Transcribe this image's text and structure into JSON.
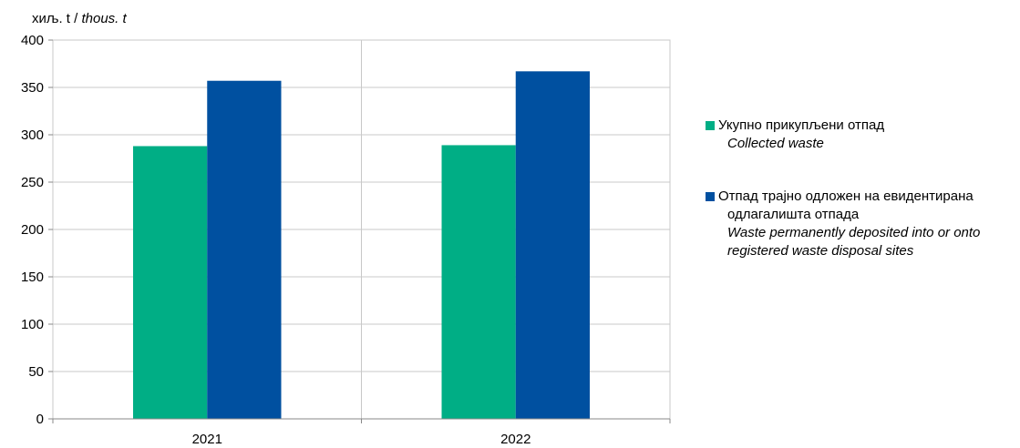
{
  "unit": {
    "sr": "хиљ. t /",
    "en": "thous. t"
  },
  "legend": [
    {
      "sr_line1": "Укупно прикупљени отпад",
      "sr_line2": "",
      "en": "Collected waste",
      "color": "#00AE85"
    },
    {
      "sr_line1": "Отпад трајно одложен на евидентирана",
      "sr_line2": "одлагалишта  отпада",
      "en": "Waste permanently deposited into or onto\nregistered waste disposal sites",
      "color": "#0050A0"
    }
  ],
  "chart_data": {
    "type": "bar",
    "categories": [
      "2021",
      "2022"
    ],
    "series": [
      {
        "name": "Укупно прикупљени отпад / Collected waste",
        "values": [
          288,
          289
        ],
        "color": "#00AE85"
      },
      {
        "name": "Отпад трајно одложен на евидентирана одлагалишта отпада / Waste permanently deposited into or onto registered waste disposal sites",
        "values": [
          357,
          367
        ],
        "color": "#0050A0"
      }
    ],
    "ylim": [
      0,
      400
    ],
    "yticks": [
      0,
      50,
      100,
      150,
      200,
      250,
      300,
      350,
      400
    ],
    "ylabel": "хиљ. t / thous. t",
    "grid": true,
    "legend_position": "right"
  }
}
